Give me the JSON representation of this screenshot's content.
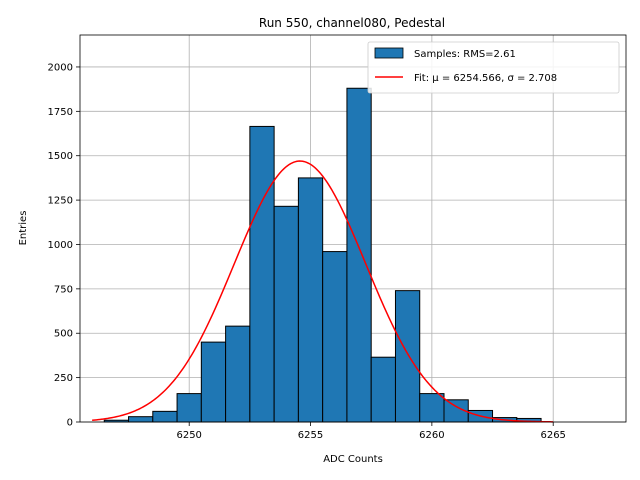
{
  "chart_data": {
    "type": "bar",
    "title": "Run 550, channel080, Pedestal",
    "xlabel": "ADC Counts",
    "ylabel": "Entries",
    "xlim": [
      6245.5,
      6268
    ],
    "ylim": [
      0,
      2180
    ],
    "xticks": [
      6250,
      6255,
      6260,
      6265
    ],
    "yticks": [
      0,
      250,
      500,
      750,
      1000,
      1250,
      1500,
      1750,
      2000
    ],
    "grid": true,
    "legend_position": "top-right",
    "bin_width": 1,
    "bins": [
      {
        "x": 6247,
        "count": 10
      },
      {
        "x": 6248,
        "count": 30
      },
      {
        "x": 6249,
        "count": 60
      },
      {
        "x": 6250,
        "count": 160
      },
      {
        "x": 6251,
        "count": 450
      },
      {
        "x": 6252,
        "count": 540
      },
      {
        "x": 6253,
        "count": 1665
      },
      {
        "x": 6254,
        "count": 1215
      },
      {
        "x": 6255,
        "count": 1375
      },
      {
        "x": 6256,
        "count": 960
      },
      {
        "x": 6257,
        "count": 1880
      },
      {
        "x": 6258,
        "count": 365
      },
      {
        "x": 6259,
        "count": 740
      },
      {
        "x": 6260,
        "count": 160
      },
      {
        "x": 6261,
        "count": 125
      },
      {
        "x": 6262,
        "count": 65
      },
      {
        "x": 6263,
        "count": 25
      },
      {
        "x": 6264,
        "count": 20
      }
    ],
    "series": [
      {
        "name": "Samples: RMS=2.61",
        "kind": "histogram",
        "color": "#1f77b4"
      },
      {
        "name": "Fit: μ = 6254.566, σ = 2.708",
        "kind": "gaussian",
        "color": "#ff0000",
        "mu": 6254.566,
        "sigma": 2.708,
        "amplitude": 1470,
        "x_range": [
          6246,
          6265
        ]
      }
    ]
  }
}
